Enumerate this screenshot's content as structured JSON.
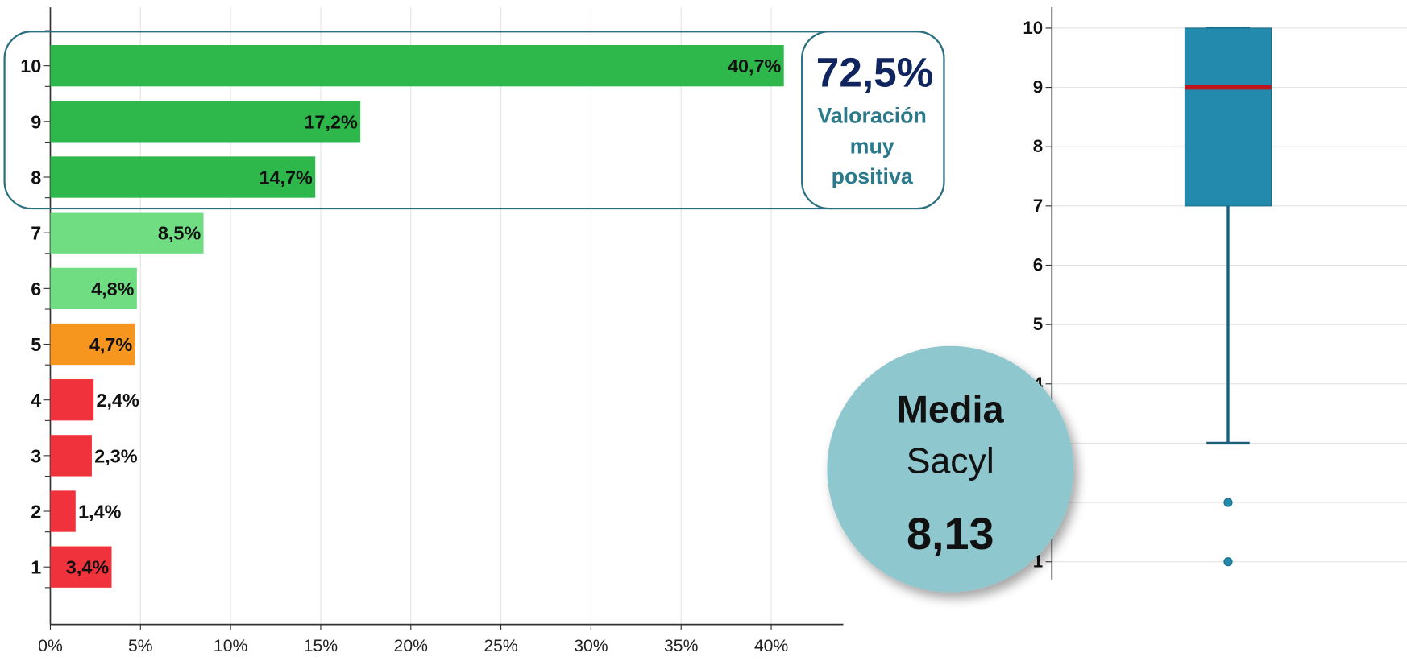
{
  "chart_data": [
    {
      "type": "bar",
      "orientation": "horizontal",
      "categories": [
        "10",
        "9",
        "8",
        "7",
        "6",
        "5",
        "4",
        "3",
        "2",
        "1"
      ],
      "values": [
        40.7,
        17.2,
        14.7,
        8.5,
        4.8,
        4.7,
        2.4,
        2.3,
        1.4,
        3.4
      ],
      "value_labels": [
        "40,7%",
        "17,2%",
        "14,7%",
        "8,5%",
        "4,8%",
        "4,7%",
        "2,4%",
        "2,3%",
        "1,4%",
        "3,4%"
      ],
      "colors": [
        "#2eb84b",
        "#2eb84b",
        "#2eb84b",
        "#70dd82",
        "#70dd82",
        "#f7961f",
        "#f0323c",
        "#f0323c",
        "#f0323c",
        "#f0323c"
      ],
      "xlim": [
        0,
        44
      ],
      "xticks": [
        {
          "value": 0,
          "label": "0%"
        },
        {
          "value": 5,
          "label": "5%"
        },
        {
          "value": 10,
          "label": "10%"
        },
        {
          "value": 15,
          "label": "15%"
        },
        {
          "value": 20,
          "label": "20%"
        },
        {
          "value": 25,
          "label": "25%"
        },
        {
          "value": 30,
          "label": "30%"
        },
        {
          "value": 35,
          "label": "35%"
        },
        {
          "value": 40,
          "label": "40%"
        }
      ],
      "grid": true,
      "annotations": {
        "highlight_value": "72,5%",
        "highlight_text": [
          "Valoración",
          "muy",
          "positiva"
        ]
      }
    },
    {
      "type": "box",
      "q1": 7,
      "median": 9,
      "q3": 10,
      "whisker_low": 3,
      "whisker_high": 10,
      "outliers": [
        2,
        1
      ],
      "color": "#2389ad",
      "median_color": "#c0141c",
      "ylim": [
        0.7,
        10.35
      ],
      "yticks": [
        1,
        2,
        3,
        4,
        5,
        6,
        7,
        8,
        9,
        10
      ],
      "grid": true,
      "annotations": {
        "circle_lines": [
          "Media",
          "Sacyl",
          "8,13"
        ]
      }
    }
  ]
}
